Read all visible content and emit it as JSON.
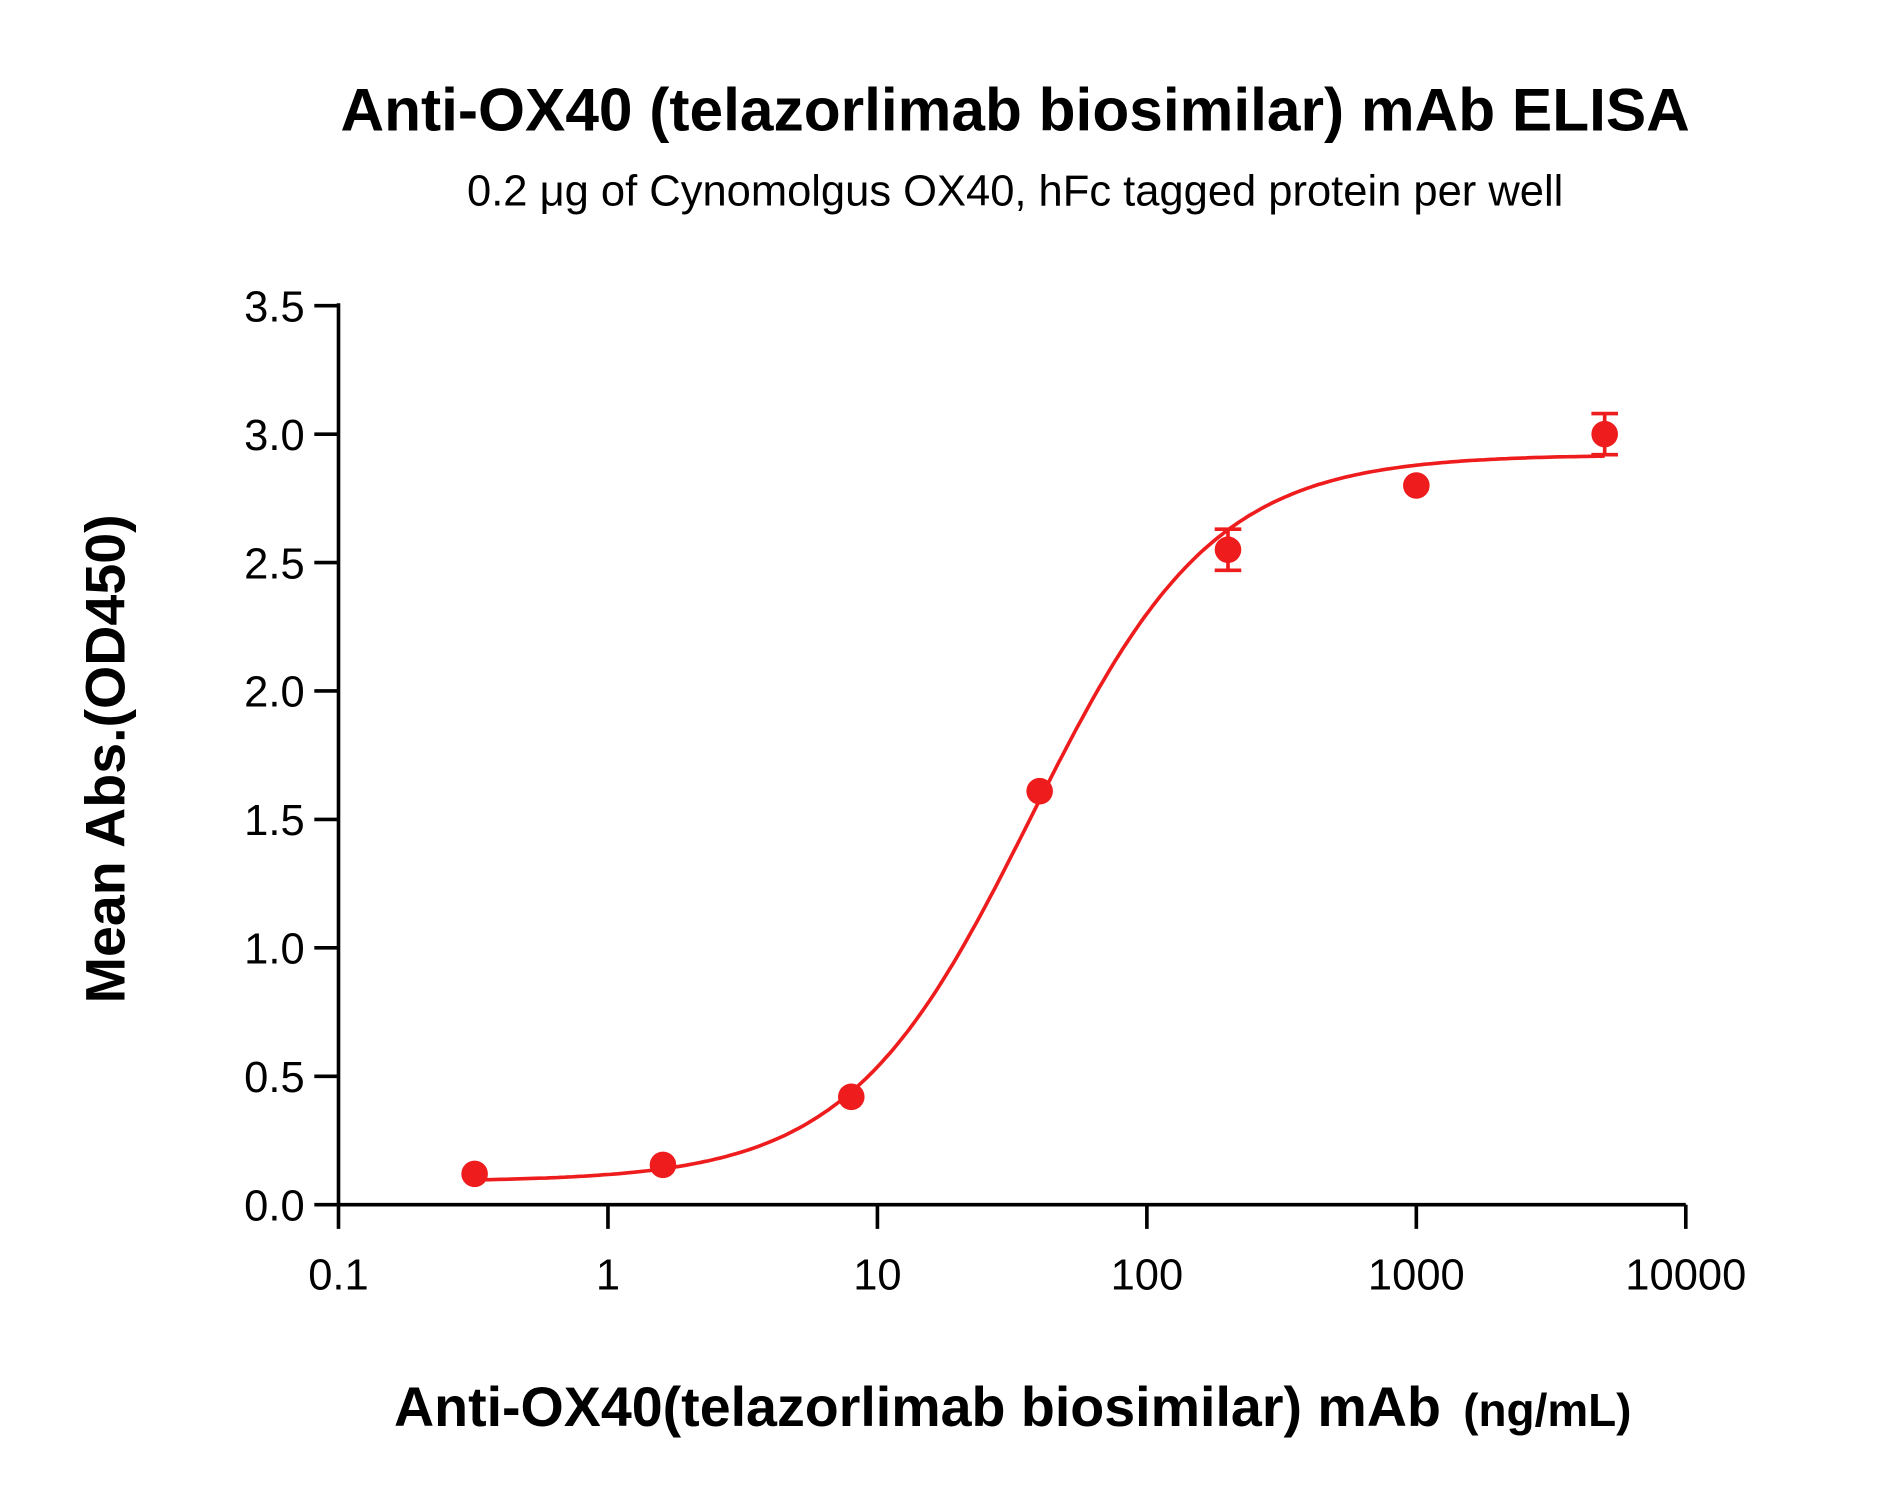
{
  "chart_data": {
    "type": "scatter",
    "title": "Anti-OX40 (telazorlimab biosimilar) mAb ELISA",
    "subtitle": "0.2 μg of Cynomolgus OX40, hFc tagged protein per well",
    "xlabel": "Anti-OX40(telazorlimab biosimilar) mAb",
    "xlabel_unit": "(ng/mL)",
    "ylabel": "Mean Abs.(OD450)",
    "xscale": "log",
    "xlim": [
      0.1,
      10000
    ],
    "ylim": [
      0,
      3.5
    ],
    "xticks": [
      "0.1",
      "1",
      "10",
      "100",
      "1000",
      "10000"
    ],
    "yticks": [
      "0.0",
      "0.5",
      "1.0",
      "1.5",
      "2.0",
      "2.5",
      "3.0",
      "3.5"
    ],
    "grid": false,
    "color": "#ee1c1c",
    "points": [
      {
        "x": 0.32,
        "y": 0.12,
        "err": 0.01
      },
      {
        "x": 1.6,
        "y": 0.155,
        "err": 0.01
      },
      {
        "x": 8,
        "y": 0.42,
        "err": 0.01
      },
      {
        "x": 40,
        "y": 1.61,
        "err": 0.02
      },
      {
        "x": 200,
        "y": 2.55,
        "err": 0.08
      },
      {
        "x": 1000,
        "y": 2.8,
        "err": 0.02
      },
      {
        "x": 5000,
        "y": 3.0,
        "err": 0.08
      }
    ],
    "fit": {
      "model": "4PL",
      "bottom": 0.09,
      "top": 2.92,
      "ec50": 37,
      "hill": 1.28
    }
  }
}
